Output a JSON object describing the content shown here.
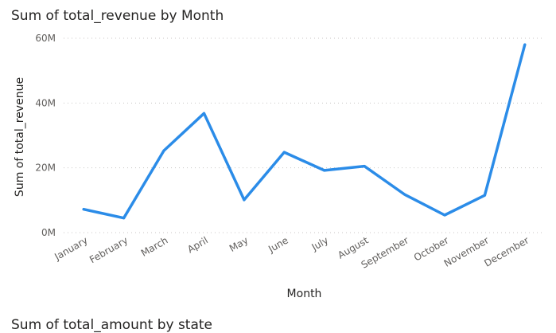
{
  "chart_title": "Sum of total_revenue by Month",
  "next_visual_title": "Sum of total_amount by state",
  "colors": {
    "line": "#2b8ce8",
    "grid": "#c8c6c4"
  },
  "chart_data": {
    "type": "line",
    "title": "Sum of total_revenue by Month",
    "xlabel": "Month",
    "ylabel": "Sum of total_revenue",
    "categories": [
      "January",
      "February",
      "March",
      "April",
      "May",
      "June",
      "July",
      "August",
      "September",
      "October",
      "November",
      "December"
    ],
    "series": [
      {
        "values": [
          7.2,
          4.5,
          25.3,
          36.8,
          10.1,
          24.8,
          19.2,
          20.5,
          11.8,
          5.4,
          11.5,
          58.0
        ]
      }
    ],
    "ylim": [
      0,
      60
    ],
    "yticks": [
      0,
      20,
      40,
      60
    ],
    "ytick_labels": [
      "0M",
      "20M",
      "40M",
      "60M"
    ],
    "grid": true,
    "legend": "none"
  }
}
